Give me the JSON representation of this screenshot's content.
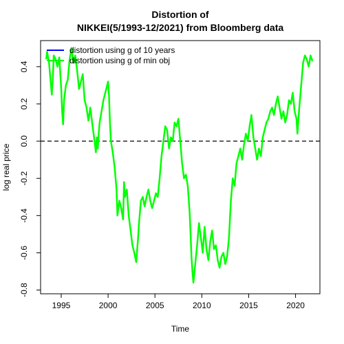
{
  "chart_data": {
    "type": "line",
    "title_line1": "Distortion of",
    "title_line2": "NIKKEI(5/1993-12/2021) from Bloomberg data",
    "xlabel": "Time",
    "ylabel": "log real price",
    "xlim": [
      1992.8,
      2022.6
    ],
    "ylim": [
      -0.82,
      0.54
    ],
    "x_ticks": [
      1995,
      2000,
      2005,
      2010,
      2015,
      2020
    ],
    "x_tick_labels": [
      "1995",
      "2000",
      "2005",
      "2010",
      "2015",
      "2020"
    ],
    "y_ticks": [
      -0.8,
      -0.6,
      -0.4,
      -0.2,
      0.0,
      0.2,
      0.4
    ],
    "y_tick_labels": [
      "-0.8",
      "-0.6",
      "-0.4",
      "-0.2",
      "0.0",
      "0.2",
      "0.4"
    ],
    "reference_line": {
      "y": 0.0,
      "style": "dashed",
      "color": "#000000"
    },
    "grid": false,
    "legend_position": "top-left",
    "series": [
      {
        "name": "distortion using g of 10 years",
        "color": "#0000ff",
        "x": [],
        "y": []
      },
      {
        "name": "distortion using g of min obj",
        "color": "#00ff00",
        "x": [
          1993.4,
          1993.5,
          1993.7,
          1994.0,
          1994.1,
          1994.2,
          1994.4,
          1994.6,
          1994.8,
          1995.0,
          1995.1,
          1995.2,
          1995.3,
          1995.5,
          1995.7,
          1995.9,
          1996.1,
          1996.3,
          1996.5,
          1996.7,
          1996.9,
          1997.1,
          1997.3,
          1997.5,
          1997.7,
          1997.9,
          1998.1,
          1998.3,
          1998.5,
          1998.7,
          1998.8,
          1998.9,
          1999.0,
          1999.1,
          1999.3,
          1999.5,
          1999.8,
          2000.0,
          2000.1,
          2000.2,
          2000.3,
          2000.5,
          2000.7,
          2000.9,
          2001.0,
          2001.2,
          2001.4,
          2001.6,
          2001.7,
          2001.8,
          2002.0,
          2002.2,
          2002.4,
          2002.6,
          2002.8,
          2003.0,
          2003.2,
          2003.3,
          2003.5,
          2003.7,
          2003.9,
          2004.1,
          2004.3,
          2004.5,
          2004.7,
          2004.9,
          2005.1,
          2005.3,
          2005.5,
          2005.7,
          2005.9,
          2006.1,
          2006.3,
          2006.5,
          2006.7,
          2006.9,
          2007.1,
          2007.3,
          2007.5,
          2007.7,
          2007.9,
          2008.1,
          2008.3,
          2008.5,
          2008.7,
          2008.8,
          2008.9,
          2009.0,
          2009.1,
          2009.3,
          2009.5,
          2009.7,
          2009.9,
          2010.1,
          2010.3,
          2010.5,
          2010.7,
          2010.9,
          2011.1,
          2011.3,
          2011.5,
          2011.7,
          2011.9,
          2012.1,
          2012.3,
          2012.5,
          2012.7,
          2012.9,
          2013.1,
          2013.3,
          2013.5,
          2013.7,
          2013.9,
          2014.1,
          2014.3,
          2014.5,
          2014.7,
          2014.9,
          2015.1,
          2015.3,
          2015.5,
          2015.7,
          2015.9,
          2016.1,
          2016.3,
          2016.5,
          2016.7,
          2016.9,
          2017.1,
          2017.3,
          2017.5,
          2017.7,
          2017.9,
          2018.1,
          2018.3,
          2018.5,
          2018.7,
          2018.9,
          2019.1,
          2019.3,
          2019.5,
          2019.7,
          2019.9,
          2020.1,
          2020.2,
          2020.4,
          2020.6,
          2020.8,
          2021.0,
          2021.2,
          2021.4,
          2021.6,
          2021.8
        ],
        "y": [
          0.44,
          0.48,
          0.42,
          0.25,
          0.33,
          0.46,
          0.44,
          0.4,
          0.45,
          0.28,
          0.16,
          0.09,
          0.22,
          0.3,
          0.33,
          0.44,
          0.5,
          0.42,
          0.46,
          0.38,
          0.28,
          0.32,
          0.36,
          0.22,
          0.18,
          0.11,
          0.18,
          0.1,
          0.02,
          -0.06,
          0.02,
          -0.04,
          0.04,
          0.1,
          0.16,
          0.22,
          0.28,
          0.32,
          0.24,
          0.1,
          0.0,
          -0.06,
          -0.14,
          -0.26,
          -0.4,
          -0.32,
          -0.36,
          -0.42,
          -0.22,
          -0.3,
          -0.26,
          -0.4,
          -0.48,
          -0.56,
          -0.6,
          -0.65,
          -0.52,
          -0.44,
          -0.32,
          -0.3,
          -0.35,
          -0.3,
          -0.26,
          -0.32,
          -0.36,
          -0.32,
          -0.28,
          -0.3,
          -0.2,
          -0.08,
          0.0,
          0.08,
          0.06,
          -0.04,
          0.02,
          0.0,
          0.1,
          0.08,
          0.12,
          0.0,
          -0.12,
          -0.2,
          -0.18,
          -0.24,
          -0.38,
          -0.5,
          -0.62,
          -0.7,
          -0.76,
          -0.66,
          -0.56,
          -0.44,
          -0.52,
          -0.6,
          -0.46,
          -0.58,
          -0.64,
          -0.54,
          -0.48,
          -0.58,
          -0.56,
          -0.64,
          -0.68,
          -0.62,
          -0.6,
          -0.66,
          -0.62,
          -0.52,
          -0.32,
          -0.2,
          -0.24,
          -0.12,
          -0.08,
          -0.04,
          -0.1,
          -0.02,
          0.04,
          0.0,
          0.08,
          0.14,
          0.02,
          -0.04,
          -0.1,
          -0.04,
          -0.08,
          0.02,
          0.06,
          0.1,
          0.12,
          0.16,
          0.18,
          0.14,
          0.2,
          0.24,
          0.18,
          0.12,
          0.16,
          0.1,
          0.14,
          0.22,
          0.2,
          0.26,
          0.16,
          0.12,
          0.04,
          0.18,
          0.3,
          0.42,
          0.46,
          0.44,
          0.4,
          0.46,
          0.43
        ]
      }
    ]
  }
}
